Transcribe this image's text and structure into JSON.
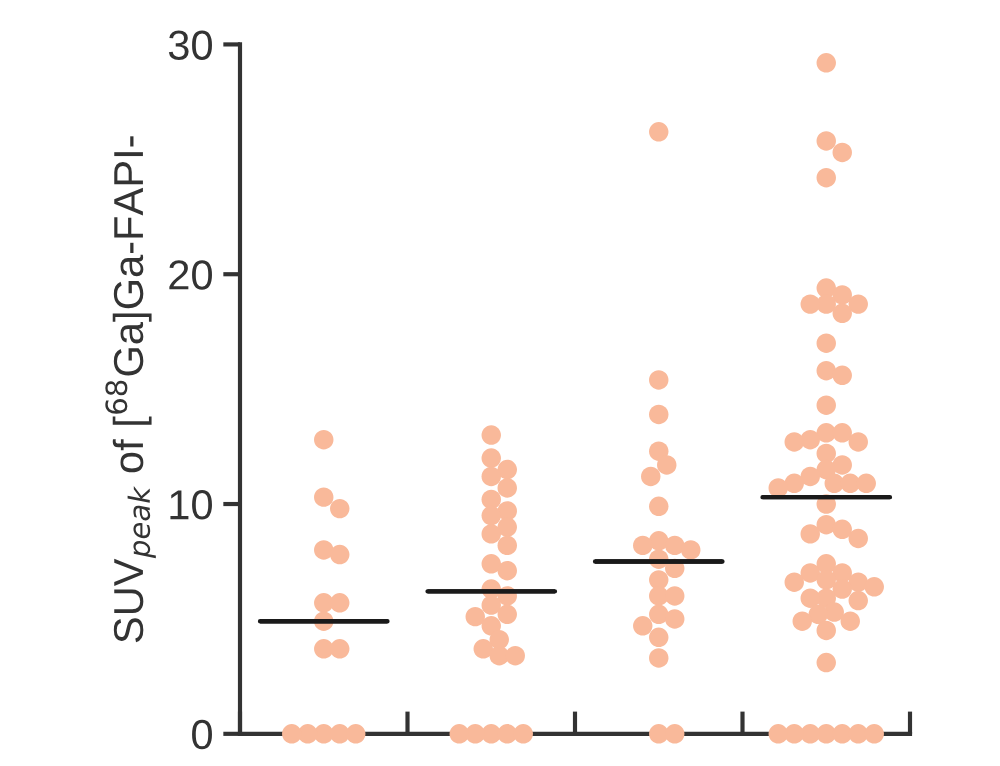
{
  "chart_data": {
    "type": "scatter",
    "ylabel": "SUV$_{peak}$ of [$^{68}$Ga]Ga-FAPI-",
    "categories": [
      null,
      null,
      null,
      null
    ],
    "ylim": [
      0,
      30
    ],
    "yticks": [
      0,
      10,
      20,
      30
    ],
    "grid": false,
    "marker": "circle",
    "series": [
      {
        "color": "#f9b99a",
        "values": [
          12.8,
          13.0,
          26.2,
          29.2
        ]
      },
      {
        "color": "#f9b99a",
        "values": [
          10.3,
          12.0,
          15.4,
          25.8
        ]
      },
      {
        "color": "#f9b99a",
        "values": [
          9.8,
          11.5,
          13.9,
          25.3
        ]
      },
      {
        "color": "#f9b99a",
        "values": [
          8.0,
          11.2,
          12.3,
          24.2
        ]
      },
      {
        "color": "#f9b99a",
        "values": [
          7.8,
          10.7,
          11.7,
          19.4
        ]
      },
      {
        "color": "#f9b99a",
        "values": [
          5.7,
          10.2,
          11.2,
          19.1
        ]
      },
      {
        "color": "#f9b99a",
        "values": [
          5.7,
          9.7,
          9.9,
          18.7
        ]
      },
      {
        "color": "#f9b99a",
        "values": [
          4.9,
          9.5,
          8.4,
          18.7
        ]
      },
      {
        "color": "#f9b99a",
        "values": [
          3.7,
          9.0,
          8.2,
          18.7
        ]
      },
      {
        "color": "#f9b99a",
        "values": [
          3.7,
          8.7,
          8.2,
          18.3
        ]
      },
      {
        "color": "#f9b99a",
        "values": [
          0,
          8.2,
          8.0,
          17.0
        ]
      },
      {
        "color": "#f9b99a",
        "values": [
          0,
          7.4,
          7.6,
          15.8
        ]
      },
      {
        "color": "#f9b99a",
        "values": [
          0,
          7.1,
          7.2,
          15.6
        ]
      },
      {
        "color": "#f9b99a",
        "values": [
          0,
          6.3,
          6.7,
          14.3
        ]
      },
      {
        "color": "#f9b99a",
        "values": [
          0,
          6.0,
          6.0,
          13.1
        ]
      },
      {
        "color": "#f9b99a",
        "values": [
          null,
          5.6,
          6.0,
          13.1
        ]
      },
      {
        "color": "#f9b99a",
        "values": [
          null,
          5.2,
          5.2,
          12.8
        ]
      },
      {
        "color": "#f9b99a",
        "values": [
          null,
          5.1,
          5.0,
          12.7
        ]
      },
      {
        "color": "#f9b99a",
        "values": [
          null,
          4.7,
          4.7,
          12.7
        ]
      },
      {
        "color": "#f9b99a",
        "values": [
          null,
          4.1,
          4.2,
          12.2
        ]
      },
      {
        "color": "#f9b99a",
        "values": [
          null,
          3.7,
          3.3,
          11.7
        ]
      },
      {
        "color": "#f9b99a",
        "values": [
          null,
          3.4,
          0,
          11.5
        ]
      },
      {
        "color": "#f9b99a",
        "values": [
          null,
          3.4,
          0,
          11.2
        ]
      },
      {
        "color": "#f9b99a",
        "values": [
          null,
          0,
          null,
          10.9
        ]
      },
      {
        "color": "#f9b99a",
        "values": [
          null,
          0,
          null,
          10.9
        ]
      },
      {
        "color": "#f9b99a",
        "values": [
          null,
          0,
          null,
          10.9
        ]
      },
      {
        "color": "#f9b99a",
        "values": [
          null,
          0,
          null,
          10.9
        ]
      },
      {
        "color": "#f9b99a",
        "values": [
          null,
          0,
          null,
          10.7
        ]
      },
      {
        "color": "#f9b99a",
        "values": [
          null,
          null,
          null,
          10.0
        ]
      },
      {
        "color": "#f9b99a",
        "values": [
          null,
          null,
          null,
          9.1
        ]
      },
      {
        "color": "#f9b99a",
        "values": [
          null,
          null,
          null,
          8.9
        ]
      },
      {
        "color": "#f9b99a",
        "values": [
          null,
          null,
          null,
          8.7
        ]
      },
      {
        "color": "#f9b99a",
        "values": [
          null,
          null,
          null,
          8.5
        ]
      },
      {
        "color": "#f9b99a",
        "values": [
          null,
          null,
          null,
          7.4
        ]
      },
      {
        "color": "#f9b99a",
        "values": [
          null,
          null,
          null,
          7.0
        ]
      },
      {
        "color": "#f9b99a",
        "values": [
          null,
          null,
          null,
          7.0
        ]
      },
      {
        "color": "#f9b99a",
        "values": [
          null,
          null,
          null,
          6.7
        ]
      },
      {
        "color": "#f9b99a",
        "values": [
          null,
          null,
          null,
          6.6
        ]
      },
      {
        "color": "#f9b99a",
        "values": [
          null,
          null,
          null,
          6.6
        ]
      },
      {
        "color": "#f9b99a",
        "values": [
          null,
          null,
          null,
          6.4
        ]
      },
      {
        "color": "#f9b99a",
        "values": [
          null,
          null,
          null,
          6.3
        ]
      },
      {
        "color": "#f9b99a",
        "values": [
          null,
          null,
          null,
          5.9
        ]
      },
      {
        "color": "#f9b99a",
        "values": [
          null,
          null,
          null,
          5.9
        ]
      },
      {
        "color": "#f9b99a",
        "values": [
          null,
          null,
          null,
          5.8
        ]
      },
      {
        "color": "#f9b99a",
        "values": [
          null,
          null,
          null,
          5.3
        ]
      },
      {
        "color": "#f9b99a",
        "values": [
          null,
          null,
          null,
          5.2
        ]
      },
      {
        "color": "#f9b99a",
        "values": [
          null,
          null,
          null,
          4.9
        ]
      },
      {
        "color": "#f9b99a",
        "values": [
          null,
          null,
          null,
          4.9
        ]
      },
      {
        "color": "#f9b99a",
        "values": [
          null,
          null,
          null,
          4.5
        ]
      },
      {
        "color": "#f9b99a",
        "values": [
          null,
          null,
          null,
          3.1
        ]
      },
      {
        "color": "#f9b99a",
        "values": [
          null,
          null,
          null,
          0
        ]
      },
      {
        "color": "#f9b99a",
        "values": [
          null,
          null,
          null,
          0
        ]
      },
      {
        "color": "#f9b99a",
        "values": [
          null,
          null,
          null,
          0
        ]
      },
      {
        "color": "#f9b99a",
        "values": [
          null,
          null,
          null,
          0
        ]
      },
      {
        "color": "#f9b99a",
        "values": [
          null,
          null,
          null,
          0
        ]
      },
      {
        "color": "#f9b99a",
        "values": [
          null,
          null,
          null,
          0
        ]
      },
      {
        "color": "#f9b99a",
        "values": [
          null,
          null,
          null,
          0
        ]
      },
      {
        "type": "box",
        "color": "#1a1a1a",
        "boxes": [
          {
            "low": 4.9,
            "q1": 4.9,
            "median": 4.9,
            "q3": 4.9,
            "high": 4.9
          },
          {
            "low": 6.2,
            "q1": 6.2,
            "median": 6.2,
            "q3": 6.2,
            "high": 6.2
          },
          {
            "low": 7.5,
            "q1": 7.5,
            "median": 7.5,
            "q3": 7.5,
            "high": 7.5
          },
          {
            "low": 10.3,
            "q1": 10.3,
            "median": 10.3,
            "q3": 10.3,
            "high": 10.3
          }
        ]
      }
    ]
  }
}
